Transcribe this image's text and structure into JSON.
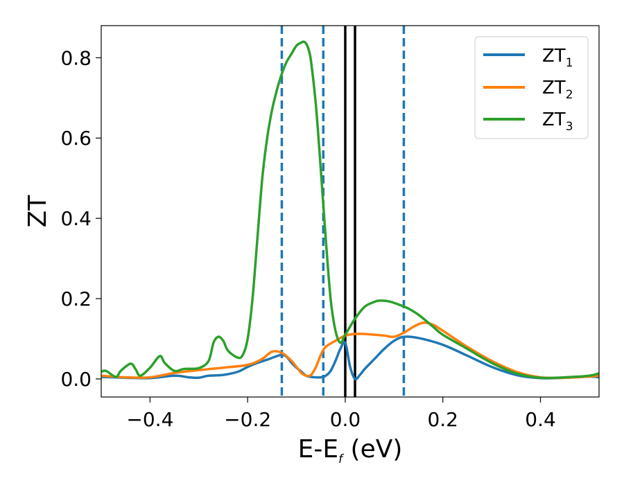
{
  "chart_data": {
    "type": "line",
    "xlabel_main": "E-E",
    "xlabel_sub": "f",
    "xlabel_unit": " (eV)",
    "ylabel": "ZT",
    "xlim": [
      -0.5,
      0.52
    ],
    "ylim": [
      -0.045,
      0.88
    ],
    "xticks": [
      -0.4,
      -0.2,
      0.0,
      0.2,
      0.4
    ],
    "xtick_labels": [
      "−0.4",
      "−0.2",
      "0.0",
      "0.2",
      "0.4"
    ],
    "yticks": [
      0.0,
      0.2,
      0.4,
      0.6,
      0.8
    ],
    "ytick_labels": [
      "0.0",
      "0.2",
      "0.4",
      "0.6",
      "0.8"
    ],
    "grid": false,
    "legend_position": "top-right",
    "series": [
      {
        "name_main": "ZT",
        "name_sub": "1",
        "color": "#1f77b4",
        "x": [
          -0.5,
          -0.45,
          -0.4,
          -0.35,
          -0.32,
          -0.3,
          -0.28,
          -0.25,
          -0.22,
          -0.2,
          -0.18,
          -0.16,
          -0.14,
          -0.13,
          -0.12,
          -0.11,
          -0.1,
          -0.09,
          -0.08,
          -0.07,
          -0.06,
          -0.05,
          -0.04,
          -0.03,
          -0.02,
          -0.01,
          0.0,
          0.01,
          0.02,
          0.03,
          0.04,
          0.06,
          0.08,
          0.1,
          0.12,
          0.15,
          0.2,
          0.25,
          0.3,
          0.35,
          0.4,
          0.45,
          0.5,
          0.52
        ],
        "y": [
          0.005,
          0.003,
          0.002,
          0.008,
          0.004,
          0.003,
          0.008,
          0.01,
          0.018,
          0.03,
          0.04,
          0.048,
          0.057,
          0.06,
          0.055,
          0.04,
          0.028,
          0.018,
          0.008,
          0.005,
          0.004,
          0.004,
          0.008,
          0.02,
          0.045,
          0.075,
          0.09,
          0.03,
          0.0,
          0.01,
          0.025,
          0.05,
          0.075,
          0.095,
          0.105,
          0.102,
          0.085,
          0.058,
          0.03,
          0.01,
          0.002,
          0.003,
          0.006,
          0.004
        ]
      },
      {
        "name_main": "ZT",
        "name_sub": "2",
        "color": "#ff7f0e",
        "x": [
          -0.5,
          -0.45,
          -0.4,
          -0.35,
          -0.3,
          -0.25,
          -0.2,
          -0.17,
          -0.15,
          -0.13,
          -0.11,
          -0.1,
          -0.09,
          -0.08,
          -0.07,
          -0.06,
          -0.05,
          -0.04,
          -0.02,
          0.0,
          0.02,
          0.04,
          0.06,
          0.08,
          0.1,
          0.12,
          0.14,
          0.16,
          0.18,
          0.2,
          0.25,
          0.3,
          0.35,
          0.4,
          0.45,
          0.5,
          0.52
        ],
        "y": [
          0.008,
          0.004,
          0.004,
          0.015,
          0.022,
          0.028,
          0.035,
          0.05,
          0.068,
          0.065,
          0.045,
          0.03,
          0.015,
          0.008,
          0.01,
          0.03,
          0.06,
          0.08,
          0.095,
          0.108,
          0.112,
          0.112,
          0.11,
          0.108,
          0.105,
          0.115,
          0.13,
          0.14,
          0.135,
          0.12,
          0.08,
          0.045,
          0.018,
          0.004,
          0.003,
          0.006,
          0.008
        ]
      },
      {
        "name_main": "ZT",
        "name_sub": "3",
        "color": "#2ca02c",
        "x": [
          -0.5,
          -0.49,
          -0.47,
          -0.46,
          -0.44,
          -0.43,
          -0.42,
          -0.4,
          -0.38,
          -0.37,
          -0.35,
          -0.33,
          -0.3,
          -0.28,
          -0.27,
          -0.26,
          -0.25,
          -0.24,
          -0.22,
          -0.21,
          -0.2,
          -0.19,
          -0.18,
          -0.17,
          -0.16,
          -0.15,
          -0.14,
          -0.13,
          -0.12,
          -0.11,
          -0.1,
          -0.09,
          -0.085,
          -0.08,
          -0.075,
          -0.07,
          -0.06,
          -0.05,
          -0.04,
          -0.03,
          -0.02,
          -0.01,
          0.0,
          0.02,
          0.04,
          0.06,
          0.07,
          0.09,
          0.11,
          0.13,
          0.15,
          0.18,
          0.2,
          0.25,
          0.3,
          0.35,
          0.4,
          0.45,
          0.5,
          0.52
        ],
        "y": [
          0.018,
          0.02,
          0.005,
          0.02,
          0.038,
          0.025,
          0.008,
          0.028,
          0.057,
          0.04,
          0.02,
          0.025,
          0.027,
          0.045,
          0.09,
          0.105,
          0.095,
          0.07,
          0.053,
          0.06,
          0.1,
          0.2,
          0.35,
          0.5,
          0.6,
          0.67,
          0.72,
          0.76,
          0.79,
          0.81,
          0.83,
          0.838,
          0.84,
          0.835,
          0.82,
          0.79,
          0.68,
          0.52,
          0.35,
          0.2,
          0.12,
          0.09,
          0.11,
          0.15,
          0.18,
          0.192,
          0.195,
          0.193,
          0.185,
          0.175,
          0.16,
          0.13,
          0.11,
          0.075,
          0.04,
          0.014,
          0.003,
          0.004,
          0.008,
          0.014
        ]
      }
    ],
    "vlines_dashed": {
      "x": [
        -0.13,
        -0.045,
        0.12
      ],
      "color": "#1f77b4"
    },
    "vlines_solid": {
      "x": [
        0.0,
        0.02
      ],
      "color": "#000000"
    }
  }
}
